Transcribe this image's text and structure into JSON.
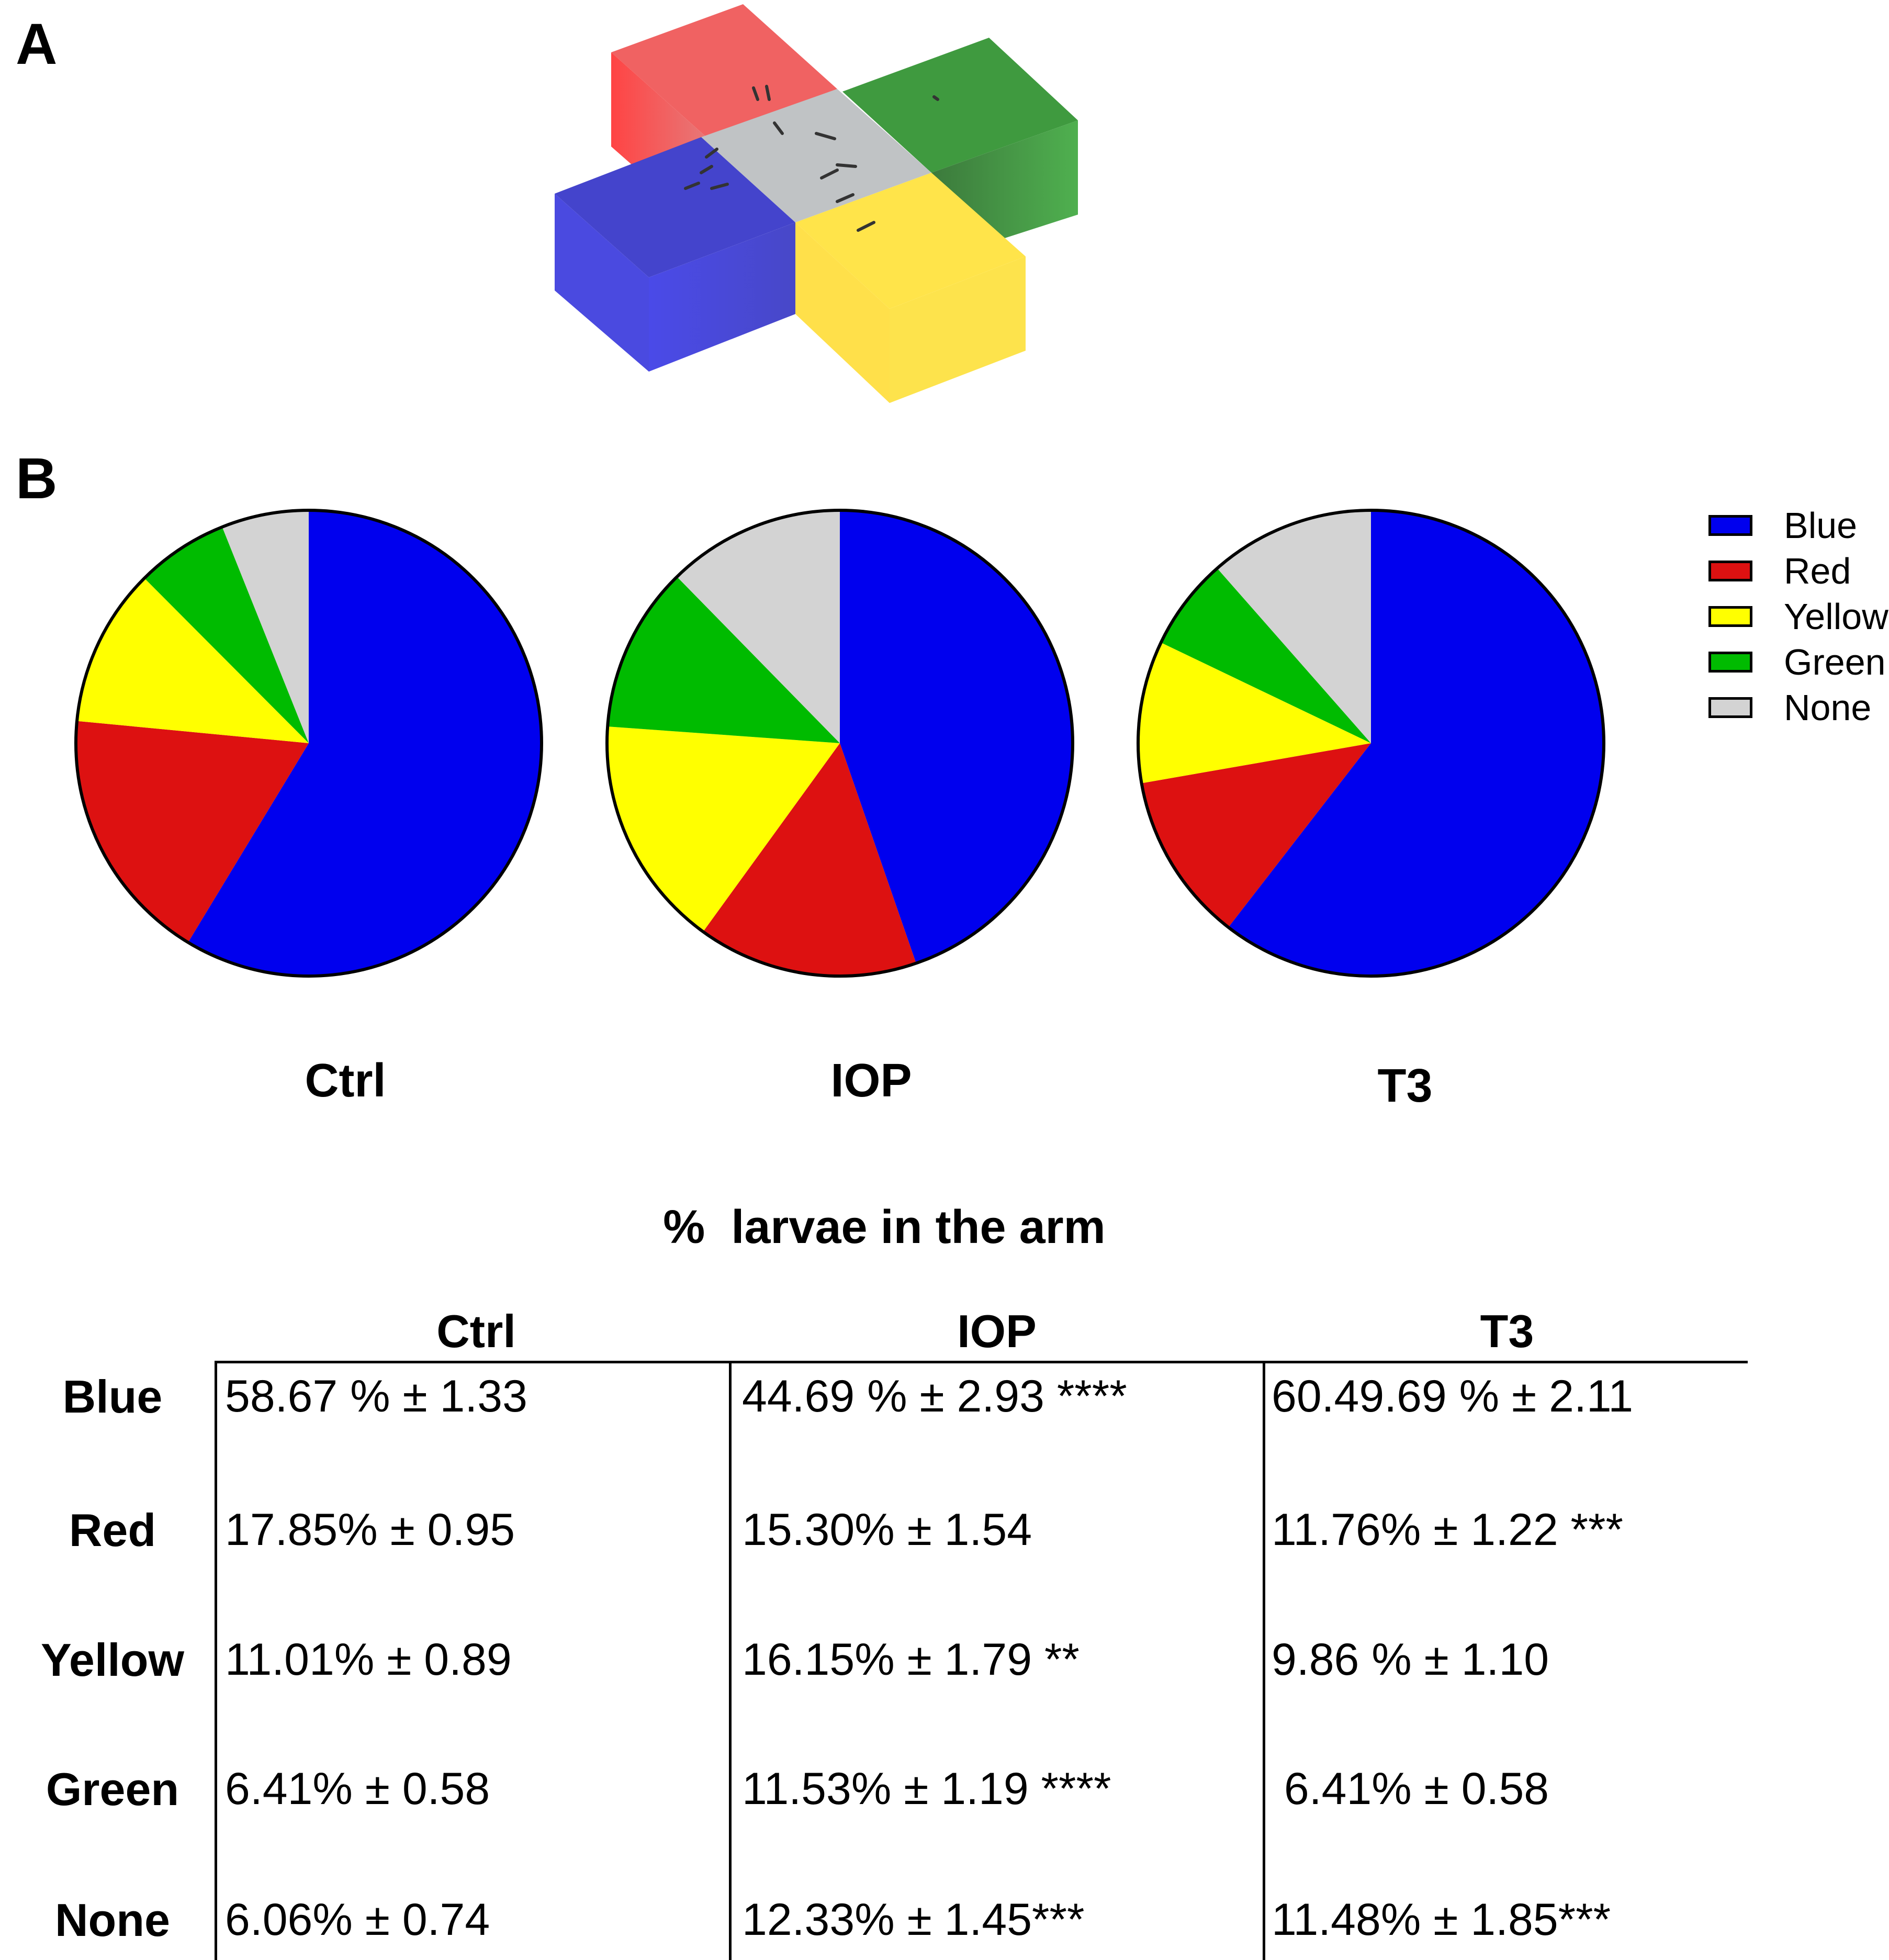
{
  "panel_a": {
    "letter": "A"
  },
  "panel_b": {
    "letter": "B"
  },
  "colors": {
    "Blue": "#0000ee",
    "Red": "#dd1111",
    "Yellow": "#ffff00",
    "Green": "#00bb00",
    "None": "#d3d3d3"
  },
  "chart_data": [
    {
      "type": "pie",
      "title": "Ctrl",
      "categories": [
        "Blue",
        "Red",
        "Yellow",
        "Green",
        "None"
      ],
      "values": [
        58.67,
        17.85,
        11.01,
        6.41,
        6.06
      ]
    },
    {
      "type": "pie",
      "title": "IOP",
      "categories": [
        "Blue",
        "Red",
        "Yellow",
        "Green",
        "None"
      ],
      "values": [
        44.69,
        15.3,
        16.15,
        11.53,
        12.33
      ]
    },
    {
      "type": "pie",
      "title": "T3",
      "categories": [
        "Blue",
        "Red",
        "Yellow",
        "Green",
        "None"
      ],
      "values": [
        60.49,
        11.76,
        9.86,
        6.41,
        11.48
      ]
    },
    {
      "type": "table",
      "title": "%  larvae in the arm",
      "columns": [
        "Ctrl",
        "IOP",
        "T3"
      ],
      "rows": [
        {
          "label": "Blue",
          "cells": [
            "58.67 % ± 1.33",
            "44.69 % ± 2.93 ****",
            "60.49.69 % ± 2.11"
          ]
        },
        {
          "label": "Red",
          "cells": [
            "17.85% ± 0.95",
            "15.30% ± 1.54",
            "11.76% ± 1.22 ***"
          ]
        },
        {
          "label": "Yellow",
          "cells": [
            "11.01% ± 0.89",
            "16.15% ± 1.79 **",
            "9.86 % ± 1.10"
          ]
        },
        {
          "label": "Green",
          "cells": [
            "6.41% ± 0.58",
            "11.53% ± 1.19 ****",
            " 6.41% ± 0.58"
          ]
        },
        {
          "label": "None",
          "cells": [
            "6.06% ± 0.74",
            "12.33% ± 1.45***",
            "11.48% ± 1.85***"
          ]
        }
      ]
    }
  ],
  "legend": {
    "placement": "right",
    "items": [
      "Blue",
      "Red",
      "Yellow",
      "Green",
      "None"
    ]
  }
}
